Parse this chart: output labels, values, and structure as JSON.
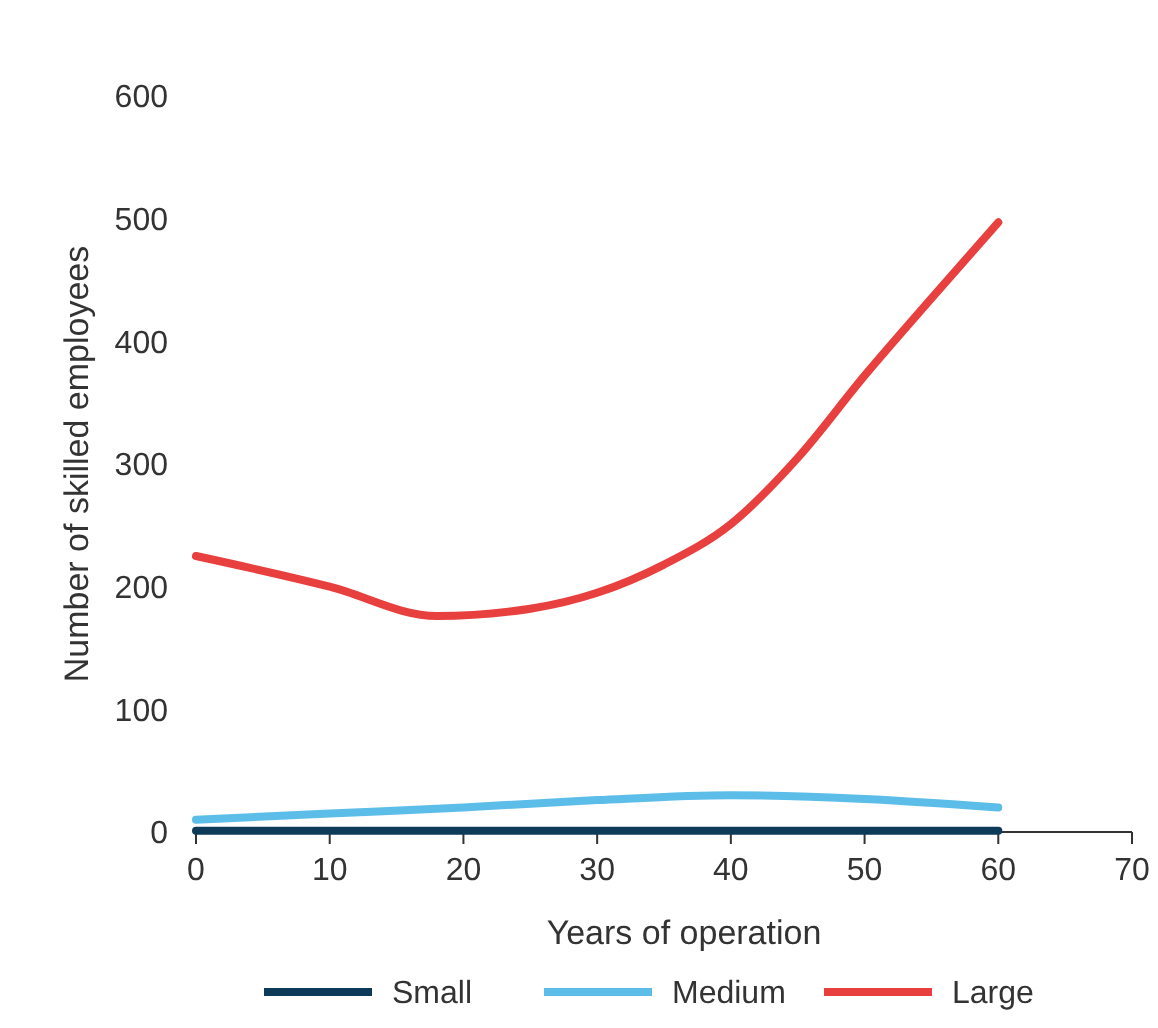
{
  "chart_data": {
    "type": "line",
    "xlabel": "Years of operation",
    "ylabel": "Number of skilled employees",
    "xlim": [
      0,
      70
    ],
    "xticks": [
      0,
      10,
      20,
      30,
      40,
      50,
      60,
      70
    ],
    "ylim": [
      0,
      600
    ],
    "yticks": [
      0,
      100,
      200,
      300,
      400,
      500,
      600
    ],
    "legend": "bottom",
    "grid": false,
    "marker": "none",
    "line_style": "solid",
    "series": [
      {
        "name": "Small",
        "color": "#0e3a5a",
        "x": [
          0,
          20,
          40,
          60
        ],
        "values": [
          1,
          1,
          1,
          1
        ]
      },
      {
        "name": "Medium",
        "color": "#5cbde8",
        "x": [
          0,
          10,
          20,
          30,
          40,
          50,
          60
        ],
        "values": [
          10,
          15,
          20,
          26,
          30,
          27,
          20
        ]
      },
      {
        "name": "Large",
        "color": "#e8403f",
        "x": [
          0,
          10,
          18,
          25,
          30,
          35,
          40,
          45,
          50,
          55,
          60
        ],
        "values": [
          225,
          200,
          176,
          182,
          195,
          218,
          251,
          305,
          372,
          435,
          497
        ]
      }
    ]
  }
}
